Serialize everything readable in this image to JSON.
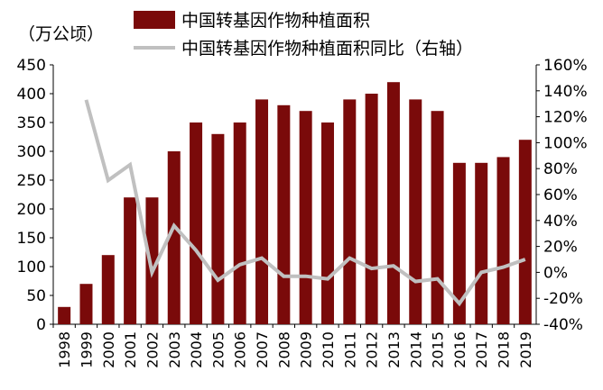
{
  "chart_data": {
    "type": "bar",
    "unit_label": "（万公顷）",
    "categories": [
      "1998",
      "1999",
      "2000",
      "2001",
      "2002",
      "2003",
      "2004",
      "2005",
      "2006",
      "2007",
      "2008",
      "2009",
      "2010",
      "2011",
      "2012",
      "2013",
      "2014",
      "2015",
      "2016",
      "2017",
      "2018",
      "2019"
    ],
    "series": [
      {
        "name": "中国转基因作物种植面积",
        "type": "bar",
        "axis": "left",
        "color": "#7a0a0a",
        "values": [
          30,
          70,
          120,
          220,
          220,
          300,
          350,
          330,
          350,
          390,
          380,
          370,
          350,
          390,
          400,
          420,
          390,
          370,
          280,
          280,
          290,
          320
        ]
      },
      {
        "name": "中国转基因作物种植面积同比（右轴）",
        "type": "line",
        "axis": "right",
        "color": "#c0c0c0",
        "values": [
          null,
          133,
          71,
          83,
          0,
          36,
          17,
          -6,
          6,
          11,
          -3,
          -3,
          -5,
          11,
          3,
          5,
          -7,
          -5,
          -24,
          0,
          4,
          10
        ]
      }
    ],
    "y_left": {
      "min": 0,
      "max": 450,
      "step": 50
    },
    "y_right": {
      "min": -40,
      "max": 160,
      "step": 20,
      "suffix": "%"
    },
    "legend_position": "top-center",
    "grid": false
  }
}
